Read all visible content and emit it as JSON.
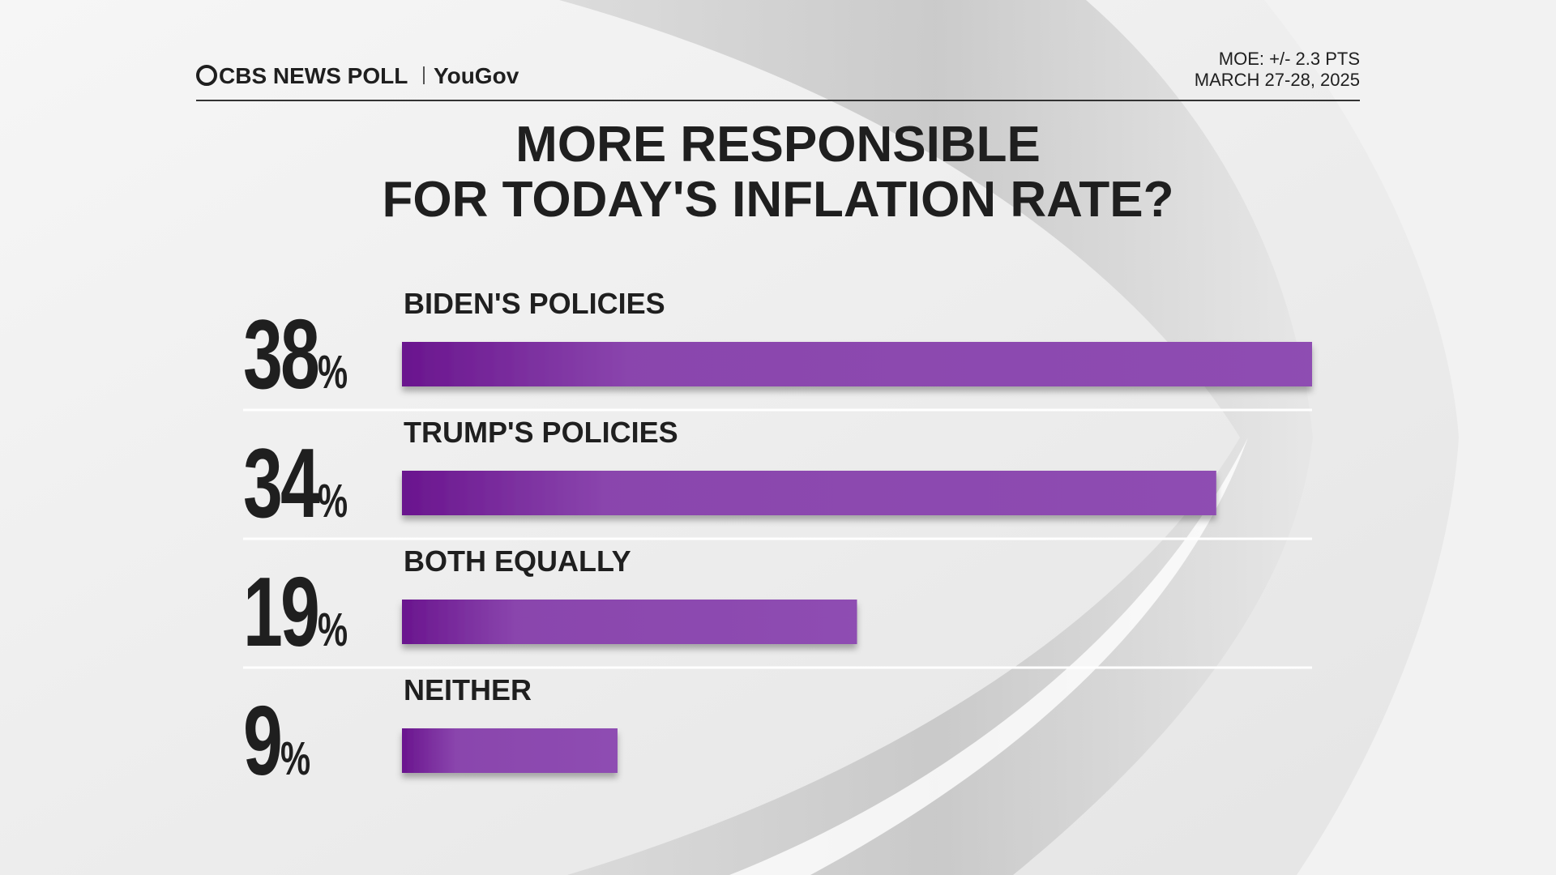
{
  "header": {
    "brand": "CBS NEWS POLL",
    "partner": "YouGov",
    "moe": "MOE: +/- 2.3 PTS",
    "date": "MARCH 27-28, 2025"
  },
  "chart_data": {
    "type": "bar",
    "orientation": "horizontal",
    "title": [
      "MORE RESPONSIBLE",
      "FOR TODAY'S INFLATION RATE?"
    ],
    "categories": [
      "BIDEN'S POLICIES",
      "TRUMP'S POLICIES",
      "BOTH EQUALLY",
      "NEITHER"
    ],
    "values": [
      38,
      34,
      19,
      9
    ],
    "value_labels": [
      "38%",
      "34%",
      "19%",
      "9%"
    ],
    "color": "#8b4cb0"
  }
}
